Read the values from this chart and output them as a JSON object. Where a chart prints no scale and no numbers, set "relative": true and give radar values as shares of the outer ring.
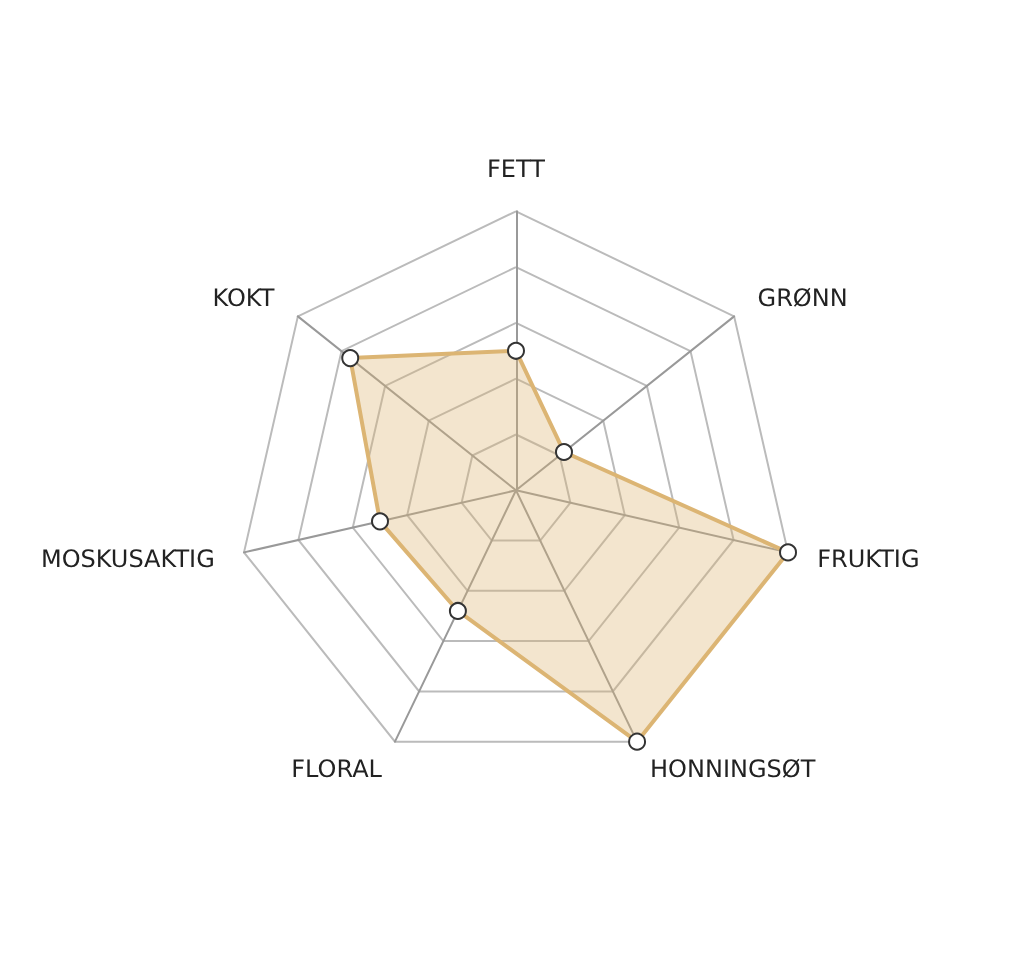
{
  "chart_data": {
    "type": "radar",
    "relative": true,
    "marker": "circle",
    "categories": [
      "FETT",
      "GRØNN",
      "FRUKTIG",
      "HONNINGSØT",
      "FLORAL",
      "MOSKUSAKTIG",
      "KOKT"
    ],
    "series": [
      {
        "color": "#dcb574",
        "values": [
          0.5,
          0.22,
          1,
          1,
          0.48,
          0.5,
          0.76
        ]
      }
    ]
  }
}
